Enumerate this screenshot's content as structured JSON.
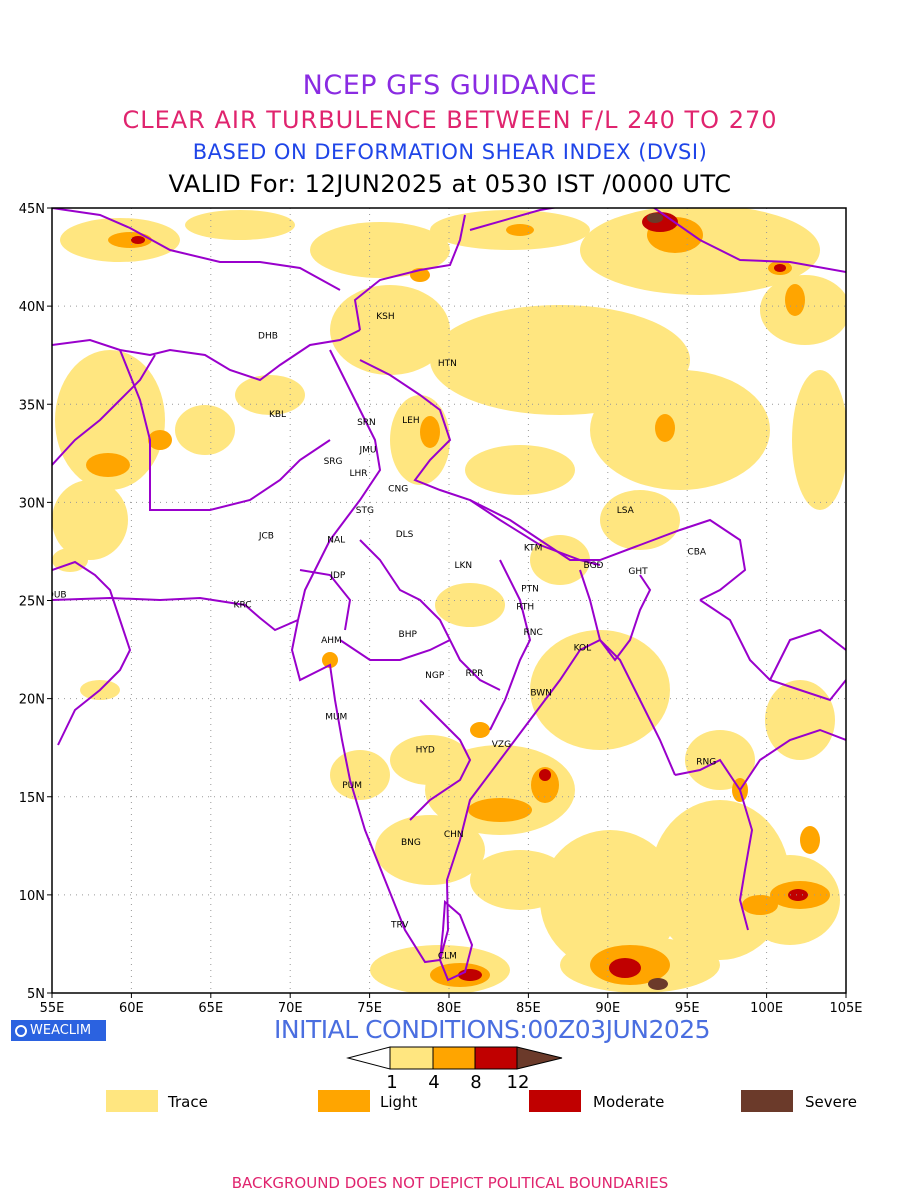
{
  "titles": {
    "line1": "NCEP GFS GUIDANCE",
    "line2": "CLEAR AIR TURBULENCE BETWEEN F/L 240 TO 270",
    "line3": "BASED ON DEFORMATION SHEAR INDEX (DVSI)",
    "line4": "VALID For: 12JUN2025 at 0530 IST /0000 UTC"
  },
  "map": {
    "lon_range": [
      55,
      105
    ],
    "lat_range": [
      5,
      45
    ],
    "lon_ticks": [
      "55E",
      "60E",
      "65E",
      "70E",
      "75E",
      "80E",
      "85E",
      "90E",
      "95E",
      "100E",
      "105E"
    ],
    "lat_ticks": [
      "45N",
      "40N",
      "35N",
      "30N",
      "25N",
      "20N",
      "15N",
      "10N",
      "5N"
    ],
    "grid": "dotted",
    "colors": {
      "trace": "#ffe680",
      "light": "#ffa500",
      "moderate": "#c00000",
      "severe": "#6b3a2a",
      "boundary": "#9900cc"
    },
    "cities": [
      {
        "code": "KSH",
        "lon": 76.0,
        "lat": 39.5
      },
      {
        "code": "DHB",
        "lon": 68.6,
        "lat": 38.5
      },
      {
        "code": "HTN",
        "lon": 79.9,
        "lat": 37.1
      },
      {
        "code": "KBL",
        "lon": 69.2,
        "lat": 34.5
      },
      {
        "code": "SRN",
        "lon": 74.8,
        "lat": 34.1
      },
      {
        "code": "LEH",
        "lon": 77.6,
        "lat": 34.2
      },
      {
        "code": "JMU",
        "lon": 74.9,
        "lat": 32.7
      },
      {
        "code": "SRG",
        "lon": 72.7,
        "lat": 32.1
      },
      {
        "code": "LHR",
        "lon": 74.3,
        "lat": 31.5
      },
      {
        "code": "CNG",
        "lon": 76.8,
        "lat": 30.7
      },
      {
        "code": "STG",
        "lon": 74.7,
        "lat": 29.6
      },
      {
        "code": "LSA",
        "lon": 91.1,
        "lat": 29.6
      },
      {
        "code": "JCB",
        "lon": 68.5,
        "lat": 28.3
      },
      {
        "code": "NAL",
        "lon": 72.9,
        "lat": 28.1
      },
      {
        "code": "DLS",
        "lon": 77.2,
        "lat": 28.4
      },
      {
        "code": "KTM",
        "lon": 85.3,
        "lat": 27.7
      },
      {
        "code": "CBA",
        "lon": 95.6,
        "lat": 27.5
      },
      {
        "code": "BGD",
        "lon": 89.1,
        "lat": 26.8
      },
      {
        "code": "GHT",
        "lon": 91.9,
        "lat": 26.5
      },
      {
        "code": "JDP",
        "lon": 73.0,
        "lat": 26.3
      },
      {
        "code": "LKN",
        "lon": 80.9,
        "lat": 26.8
      },
      {
        "code": "DUB",
        "lon": 55.3,
        "lat": 25.3
      },
      {
        "code": "PTN",
        "lon": 85.1,
        "lat": 25.6
      },
      {
        "code": "KRC",
        "lon": 67.0,
        "lat": 24.8
      },
      {
        "code": "RTH",
        "lon": 84.8,
        "lat": 24.7
      },
      {
        "code": "AHM",
        "lon": 72.6,
        "lat": 23.0
      },
      {
        "code": "BHP",
        "lon": 77.4,
        "lat": 23.3
      },
      {
        "code": "RNC",
        "lon": 85.3,
        "lat": 23.4
      },
      {
        "code": "KOL",
        "lon": 88.4,
        "lat": 22.6
      },
      {
        "code": "NGP",
        "lon": 79.1,
        "lat": 21.2
      },
      {
        "code": "RPR",
        "lon": 81.6,
        "lat": 21.3
      },
      {
        "code": "BWN",
        "lon": 85.8,
        "lat": 20.3
      },
      {
        "code": "MUM",
        "lon": 72.9,
        "lat": 19.1
      },
      {
        "code": "HYD",
        "lon": 78.5,
        "lat": 17.4
      },
      {
        "code": "VZG",
        "lon": 83.3,
        "lat": 17.7
      },
      {
        "code": "RNG",
        "lon": 96.2,
        "lat": 16.8
      },
      {
        "code": "PUM",
        "lon": 73.9,
        "lat": 15.6
      },
      {
        "code": "CHN",
        "lon": 80.3,
        "lat": 13.1
      },
      {
        "code": "BNG",
        "lon": 77.6,
        "lat": 12.7
      },
      {
        "code": "TRV",
        "lon": 76.9,
        "lat": 8.5
      },
      {
        "code": "CLM",
        "lon": 79.9,
        "lat": 6.9
      }
    ]
  },
  "logo": {
    "text": "WEACLIM",
    "icon": "copyright-circle-icon"
  },
  "initial_conditions": "INITIAL CONDITIONS:00Z03JUN2025",
  "colorbar": {
    "tick_labels": [
      "1",
      "4",
      "8",
      "12"
    ],
    "bin_colors": [
      "#ffffff",
      "#ffe680",
      "#ffa500",
      "#c00000",
      "#6b3a2a"
    ]
  },
  "legend": [
    {
      "label": "Trace",
      "color": "#ffe680"
    },
    {
      "label": "Light",
      "color": "#ffa500"
    },
    {
      "label": "Moderate",
      "color": "#c00000"
    },
    {
      "label": "Severe",
      "color": "#6b3a2a"
    }
  ],
  "footer": "BACKGROUND DOES NOT DEPICT POLITICAL BOUNDARIES"
}
